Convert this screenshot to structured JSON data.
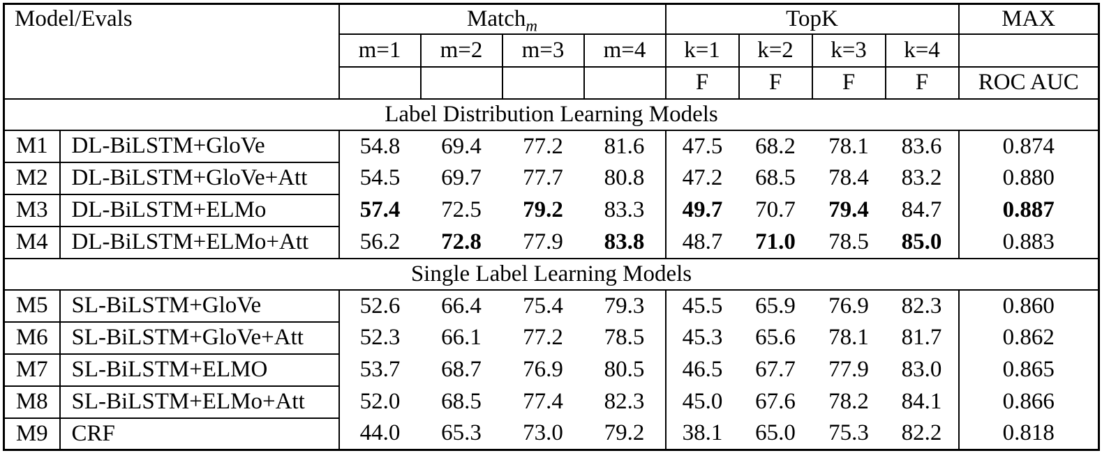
{
  "header": {
    "model_evals": "Model/Evals",
    "match_group": {
      "base": "Match",
      "subscript": "m"
    },
    "topk_group": "TopK",
    "max_group": "MAX",
    "match_cols": [
      "m=1",
      "m=2",
      "m=3",
      "m=4"
    ],
    "topk_cols": [
      "k=1",
      "k=2",
      "k=3",
      "k=4"
    ],
    "match_metrics": [
      "",
      "",
      "",
      ""
    ],
    "topk_metrics": [
      "F",
      "F",
      "F",
      "F"
    ],
    "max_spacer": "",
    "max_metric": "ROC AUC"
  },
  "sections": [
    {
      "title": "Label Distribution Learning Models",
      "rows": [
        {
          "id": "M1",
          "model": "DL-BiLSTM+GloVe",
          "match": [
            "54.8",
            "69.4",
            "77.2",
            "81.6"
          ],
          "topk": [
            "47.5",
            "68.2",
            "78.1",
            "83.6"
          ],
          "max": "0.874"
        },
        {
          "id": "M2",
          "model": "DL-BiLSTM+GloVe+Att",
          "match": [
            "54.5",
            "69.7",
            "77.7",
            "80.8"
          ],
          "topk": [
            "47.2",
            "68.5",
            "78.4",
            "83.2"
          ],
          "max": "0.880"
        },
        {
          "id": "M3",
          "model": "DL-BiLSTM+ELMo",
          "match": [
            {
              "v": "57.4",
              "b": true
            },
            "72.5",
            {
              "v": "79.2",
              "b": true
            },
            "83.3"
          ],
          "topk": [
            {
              "v": "49.7",
              "b": true
            },
            "70.7",
            {
              "v": "79.4",
              "b": true
            },
            "84.7"
          ],
          "max": {
            "v": "0.887",
            "b": true
          }
        },
        {
          "id": "M4",
          "model": "DL-BiLSTM+ELMo+Att",
          "match": [
            "56.2",
            {
              "v": "72.8",
              "b": true
            },
            "77.9",
            {
              "v": "83.8",
              "b": true
            }
          ],
          "topk": [
            "48.7",
            {
              "v": "71.0",
              "b": true
            },
            "78.5",
            {
              "v": "85.0",
              "b": true
            }
          ],
          "max": "0.883"
        }
      ]
    },
    {
      "title": "Single Label Learning Models",
      "rows": [
        {
          "id": "M5",
          "model": "SL-BiLSTM+GloVe",
          "match": [
            "52.6",
            "66.4",
            "75.4",
            "79.3"
          ],
          "topk": [
            "45.5",
            "65.9",
            "76.9",
            "82.3"
          ],
          "max": "0.860"
        },
        {
          "id": "M6",
          "model": "SL-BiLSTM+GloVe+Att",
          "match": [
            "52.3",
            "66.1",
            "77.2",
            "78.5"
          ],
          "topk": [
            "45.3",
            "65.6",
            "78.1",
            "81.7"
          ],
          "max": "0.862"
        },
        {
          "id": "M7",
          "model": "SL-BiLSTM+ELMO",
          "match": [
            "53.7",
            "68.7",
            "76.9",
            "80.5"
          ],
          "topk": [
            "46.5",
            "67.7",
            "77.9",
            "83.0"
          ],
          "max": "0.865"
        },
        {
          "id": "M8",
          "model": "SL-BiLSTM+ELMo+Att",
          "match": [
            "52.0",
            "68.5",
            "77.4",
            "82.3"
          ],
          "topk": [
            "45.0",
            "67.6",
            "78.2",
            "84.1"
          ],
          "max": "0.866"
        },
        {
          "id": "M9",
          "model": "CRF",
          "match": [
            "44.0",
            "65.3",
            "73.0",
            "79.2"
          ],
          "topk": [
            "38.1",
            "65.0",
            "75.3",
            "82.2"
          ],
          "max": "0.818"
        }
      ]
    }
  ]
}
